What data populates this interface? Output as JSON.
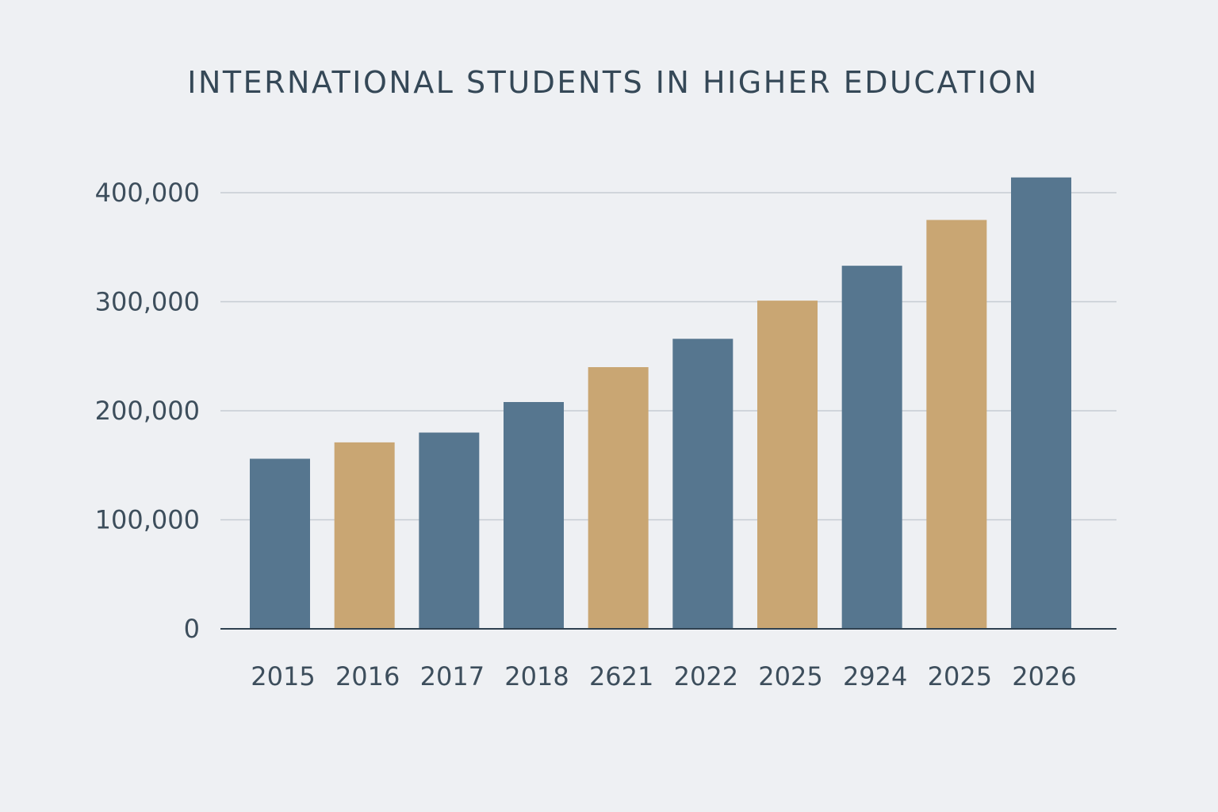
{
  "chart_data": {
    "type": "bar",
    "title": "INTERNATIONAL STUDENTS IN HIGHER EDUCATION",
    "xlabel": "",
    "ylabel": "",
    "categories": [
      "2015",
      "2016",
      "2017",
      "2018",
      "2621",
      "2022",
      "2025",
      "2924",
      "2025",
      "2026"
    ],
    "values": [
      156000,
      171000,
      180000,
      208000,
      240000,
      266000,
      301000,
      333000,
      375000,
      414000
    ],
    "bar_colors": [
      "#56768f",
      "#c9a673",
      "#56768f",
      "#56768f",
      "#c9a673",
      "#56768f",
      "#c9a673",
      "#56768f",
      "#c9a673",
      "#56768f"
    ],
    "ylim": [
      0,
      400000
    ],
    "yticks": [
      0,
      100000,
      200000,
      300000,
      400000
    ],
    "ytick_labels": [
      "0",
      "100,000",
      "200,000",
      "300,000",
      "400,000"
    ],
    "grid": true,
    "legend": "none"
  },
  "colors": {
    "background": "#eef0f3",
    "bar_blue": "#56768f",
    "bar_gold": "#c9a673",
    "text": "#3b4d5c",
    "gridline": "#c6ccd3",
    "axis": "#2f4150"
  }
}
